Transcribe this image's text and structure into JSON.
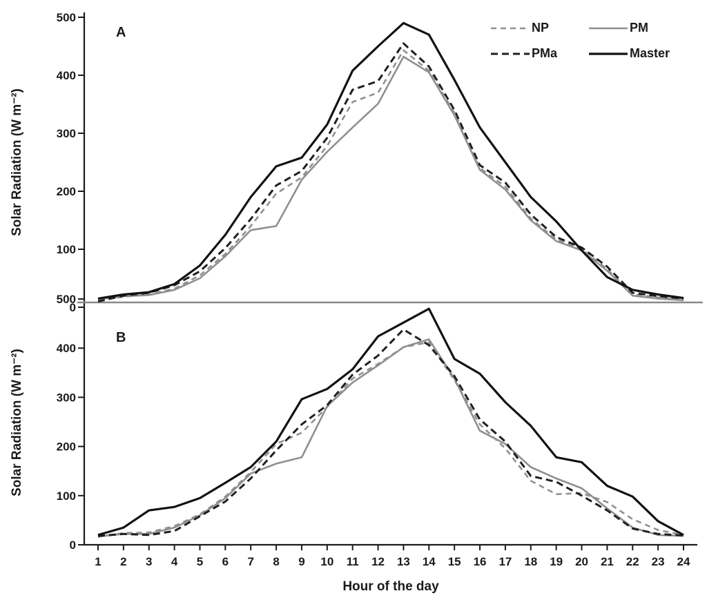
{
  "figure": {
    "panels": [
      {
        "label": "A"
      },
      {
        "label": "B"
      }
    ],
    "y_axis_title": "Solar Radiation (W m⁻²)",
    "x_axis_title": "Hour of the day"
  },
  "legend": [
    {
      "name": "NP",
      "color": "#8f8f8f",
      "dash": "8,6",
      "width": 2.6
    },
    {
      "name": "PM",
      "color": "#8f8f8f",
      "dash": "",
      "width": 2.6
    },
    {
      "name": "PMa",
      "color": "#1f1f1f",
      "dash": "10,6",
      "width": 3
    },
    {
      "name": "Master",
      "color": "#121212",
      "dash": "",
      "width": 3.2
    }
  ],
  "chart_data": [
    {
      "type": "line",
      "panel": "A",
      "xlabel": "Hour of the day",
      "ylabel": "Solar Radiation (W m⁻²)",
      "x": [
        1,
        2,
        3,
        4,
        5,
        6,
        7,
        8,
        9,
        10,
        11,
        12,
        13,
        14,
        15,
        16,
        17,
        18,
        19,
        20,
        21,
        22,
        23,
        24
      ],
      "ylim": [
        0,
        500
      ],
      "yticks": [
        0,
        100,
        200,
        300,
        400,
        500
      ],
      "legend_position": "top-right",
      "grid": false,
      "series": [
        {
          "name": "NP",
          "color": "#8f8f8f",
          "dash": "8,6",
          "width": 2.6,
          "values": [
            12,
            18,
            22,
            32,
            55,
            92,
            140,
            196,
            224,
            278,
            354,
            370,
            443,
            408,
            335,
            240,
            208,
            153,
            117,
            100,
            66,
            22,
            17,
            13
          ]
        },
        {
          "name": "PM",
          "color": "#8f8f8f",
          "dash": "",
          "width": 2.6,
          "values": [
            14,
            19,
            21,
            30,
            50,
            88,
            133,
            140,
            220,
            268,
            310,
            351,
            432,
            405,
            331,
            237,
            203,
            150,
            114,
            98,
            63,
            20,
            15,
            12
          ]
        },
        {
          "name": "PMa",
          "color": "#1f1f1f",
          "dash": "10,6",
          "width": 3,
          "values": [
            10,
            20,
            25,
            38,
            62,
            102,
            152,
            210,
            235,
            292,
            375,
            390,
            455,
            415,
            340,
            245,
            215,
            160,
            121,
            103,
            70,
            25,
            19,
            15
          ]
        },
        {
          "name": "Master",
          "color": "#121212",
          "dash": "",
          "width": 3.2,
          "values": [
            15,
            22,
            26,
            40,
            72,
            125,
            190,
            243,
            258,
            315,
            408,
            450,
            490,
            470,
            392,
            310,
            250,
            190,
            148,
            98,
            52,
            30,
            22,
            16
          ]
        }
      ]
    },
    {
      "type": "line",
      "panel": "B",
      "xlabel": "Hour of the day",
      "ylabel": "Solar Radiation (W m⁻²)",
      "x": [
        1,
        2,
        3,
        4,
        5,
        6,
        7,
        8,
        9,
        10,
        11,
        12,
        13,
        14,
        15,
        16,
        17,
        18,
        19,
        20,
        21,
        22,
        23,
        24
      ],
      "ylim": [
        0,
        500
      ],
      "yticks": [
        0,
        100,
        200,
        300,
        400,
        500
      ],
      "grid": false,
      "series": [
        {
          "name": "NP",
          "color": "#8f8f8f",
          "dash": "8,6",
          "width": 2.6,
          "values": [
            16,
            24,
            25,
            38,
            62,
            98,
            148,
            205,
            228,
            280,
            338,
            368,
            402,
            412,
            335,
            245,
            196,
            130,
            103,
            105,
            87,
            52,
            30,
            20
          ]
        },
        {
          "name": "PM",
          "color": "#8f8f8f",
          "dash": "",
          "width": 2.6,
          "values": [
            17,
            22,
            22,
            35,
            60,
            95,
            145,
            165,
            178,
            282,
            330,
            365,
            402,
            418,
            338,
            232,
            205,
            158,
            135,
            115,
            74,
            35,
            20,
            18
          ]
        },
        {
          "name": "PMa",
          "color": "#1f1f1f",
          "dash": "10,6",
          "width": 3,
          "values": [
            18,
            22,
            20,
            28,
            58,
            88,
            135,
            192,
            245,
            284,
            346,
            385,
            438,
            406,
            343,
            255,
            210,
            140,
            128,
            100,
            70,
            33,
            22,
            19
          ]
        },
        {
          "name": "Master",
          "color": "#121212",
          "dash": "",
          "width": 3.2,
          "values": [
            20,
            35,
            70,
            77,
            95,
            126,
            158,
            210,
            296,
            317,
            357,
            424,
            452,
            480,
            378,
            348,
            290,
            242,
            178,
            168,
            120,
            98,
            48,
            20
          ]
        }
      ]
    }
  ]
}
